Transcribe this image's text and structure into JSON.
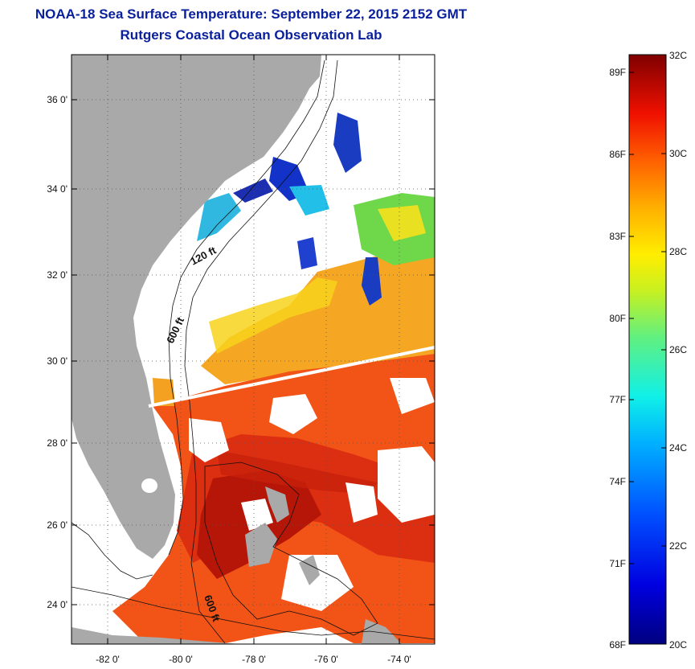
{
  "title": {
    "line1": "NOAA-18 Sea Surface Temperature:  September 22, 2015 2152 GMT",
    "line2": "Rutgers Coastal Ocean Observation Lab"
  },
  "map": {
    "lat_ticks": [
      "36 0'",
      "34 0'",
      "32 0'",
      "30 0'",
      "28 0'",
      "26 0'",
      "24 0'"
    ],
    "lon_ticks": [
      "-82 0'",
      "-80 0'",
      "-78 0'",
      "-76 0'",
      "-74 0'"
    ],
    "contour_labels": [
      "120 ft",
      "600 ft",
      "600 ft"
    ],
    "land_color": "#a9a9a9",
    "cloud_color": "#ffffff"
  },
  "colorbar": {
    "fahrenheit_labels": [
      "89F",
      "86F",
      "83F",
      "80F",
      "77F",
      "74F",
      "71F",
      "68F"
    ],
    "celsius_labels": [
      "32C",
      "30C",
      "28C",
      "26C",
      "24C",
      "22C",
      "20C"
    ],
    "min_c": 20,
    "max_c": 32
  }
}
